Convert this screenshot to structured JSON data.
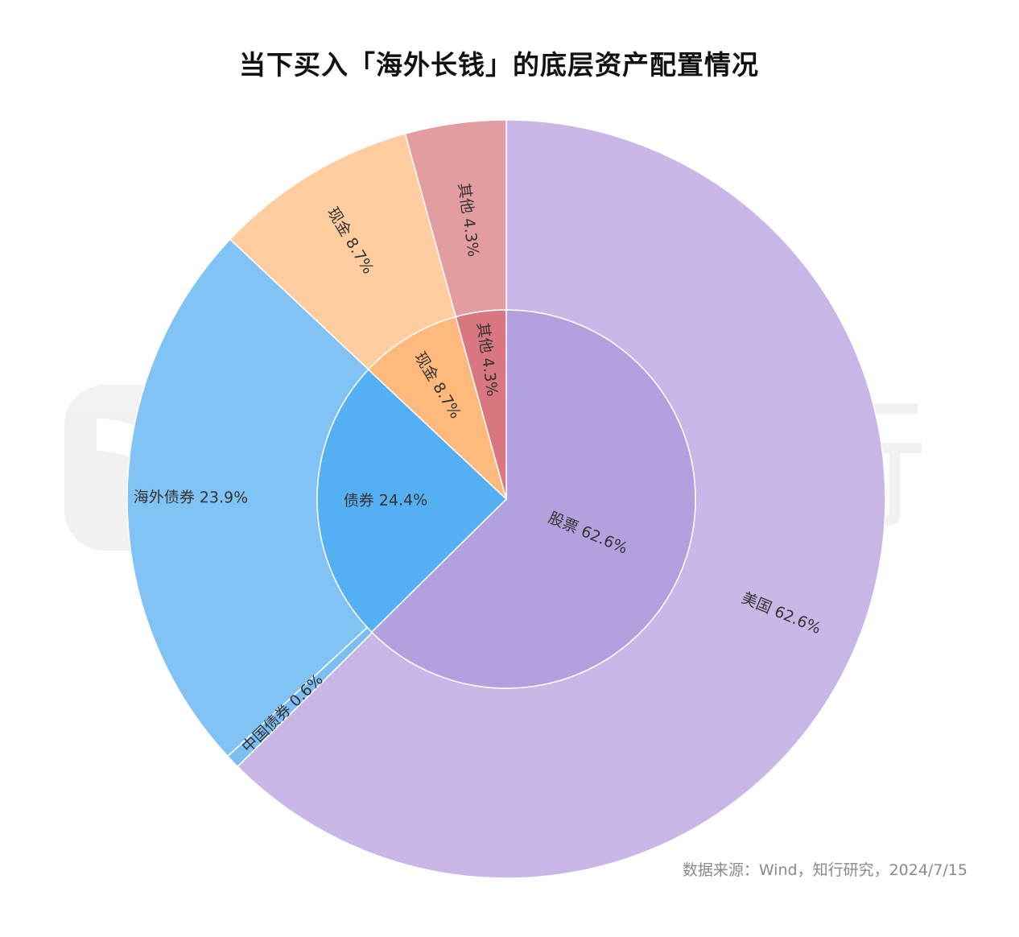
{
  "title": "当下买入「海外长钱」的底层资产配置情况",
  "source": "数据来源：Wind，知行研究，2024/7/15",
  "watermark": {
    "text": [
      "有",
      "知",
      "有",
      "行"
    ]
  },
  "chart_data": {
    "type": "pie",
    "subtype": "nested-donut",
    "inner": [
      {
        "name": "股票",
        "value": 62.6,
        "label": "股票 62.6%",
        "color": "#b3a0de"
      },
      {
        "name": "债券",
        "value": 24.4,
        "label": "债券 24.4%",
        "color": "#54aff3"
      },
      {
        "name": "现金",
        "value": 8.7,
        "label": "现金 8.7%",
        "color": "#ffb97c"
      },
      {
        "name": "其他",
        "value": 4.3,
        "label": "其他 4.3%",
        "color": "#d97780"
      }
    ],
    "outer": [
      {
        "name": "美国",
        "value": 62.6,
        "label": "美国 62.6%",
        "color": "#c9b8e7"
      },
      {
        "name": "中国债券",
        "value": 0.6,
        "label": "中国债券 0.6%",
        "color": "#7cbdf2"
      },
      {
        "name": "海外债券",
        "value": 23.9,
        "label": "海外债券 23.9%",
        "color": "#82c3f5"
      },
      {
        "name": "现金",
        "value": 8.7,
        "label": "现金 8.7%",
        "color": "#ffcda0"
      },
      {
        "name": "其他",
        "value": 4.3,
        "label": "其他 4.3%",
        "color": "#e39c9f"
      }
    ],
    "direction": "clockwise from 12 o'clock"
  }
}
